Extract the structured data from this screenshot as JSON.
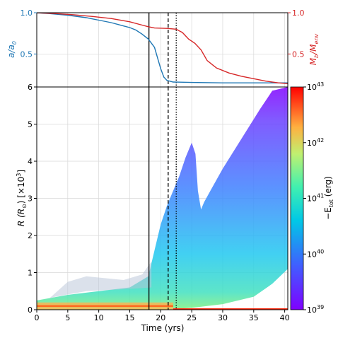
{
  "chart_data": [
    {
      "type": "line",
      "panel": "top",
      "x": [
        0,
        2,
        5,
        8,
        10,
        12,
        14,
        15,
        16,
        17,
        18,
        19,
        20,
        20.5,
        21,
        22,
        25,
        30,
        35,
        40.5
      ],
      "series": [
        {
          "name": "a/a0",
          "color": "#1f77b4",
          "axis": "left",
          "values": [
            1.0,
            0.99,
            0.97,
            0.94,
            0.91,
            0.88,
            0.84,
            0.82,
            0.79,
            0.74,
            0.68,
            0.58,
            0.32,
            0.22,
            0.18,
            0.16,
            0.155,
            0.15,
            0.15,
            0.15
          ]
        },
        {
          "name": "Mb/Menv",
          "color": "#d62728",
          "axis": "right",
          "points": [
            [
              0,
              1.0
            ],
            [
              3,
              0.99
            ],
            [
              6,
              0.975
            ],
            [
              9,
              0.955
            ],
            [
              12,
              0.93
            ],
            [
              15,
              0.89
            ],
            [
              17,
              0.85
            ],
            [
              18,
              0.83
            ],
            [
              19,
              0.815
            ],
            [
              21,
              0.81
            ],
            [
              22.5,
              0.8
            ],
            [
              23.5,
              0.76
            ],
            [
              24.5,
              0.68
            ],
            [
              25.5,
              0.63
            ],
            [
              26.5,
              0.55
            ],
            [
              27.5,
              0.42
            ],
            [
              29,
              0.33
            ],
            [
              31,
              0.27
            ],
            [
              33,
              0.23
            ],
            [
              35,
              0.2
            ],
            [
              37,
              0.17
            ],
            [
              39,
              0.15
            ],
            [
              40.5,
              0.14
            ]
          ]
        }
      ],
      "ylabel_left": "a/a",
      "ylabel_left_sub": "0",
      "ylabel_right": "M",
      "ylabel_right_sub1": "b",
      "ylabel_right_mid": "/M",
      "ylabel_right_sub2": "env",
      "ylim": [
        0.1,
        1.0
      ],
      "yticks_left": [
        "1.0",
        "0.5"
      ],
      "yticks_right": [
        "1.0",
        "0.5"
      ],
      "xlim": [
        0,
        40.5
      ],
      "grid": true
    },
    {
      "type": "scatter-density",
      "panel": "bottom",
      "xlabel": "Time (yrs)",
      "ylabel": "R (R",
      "ylabel_tail": ") [×10",
      "ylabel_sup": "3",
      "ylabel_end": "]",
      "xlim": [
        0,
        40.5
      ],
      "ylim": [
        0,
        6
      ],
      "xticks": [
        "0",
        "5",
        "10",
        "15",
        "20",
        "25",
        "30",
        "35",
        "40"
      ],
      "yticks": [
        "0",
        "1",
        "2",
        "3",
        "4",
        "5",
        "6"
      ],
      "grid": true,
      "vertical_lines": [
        {
          "x": 18.1,
          "style": "solid"
        },
        {
          "x": 21.2,
          "style": "dashed"
        },
        {
          "x": 22.5,
          "style": "dotted"
        }
      ],
      "colorbar": {
        "label_prefix": "−E",
        "label_sub": "tot",
        "label_suffix": " (erg)",
        "scale": "log",
        "range": [
          1e+39,
          1e+43
        ],
        "ticks": [
          {
            "base": "10",
            "exp": "39"
          },
          {
            "base": "10",
            "exp": "40"
          },
          {
            "base": "10",
            "exp": "41"
          },
          {
            "base": "10",
            "exp": "42"
          },
          {
            "base": "10",
            "exp": "43"
          }
        ]
      },
      "bands": [
        {
          "label": "upper-envelope",
          "points": [
            [
              0,
              0.25
            ],
            [
              5,
              0.4
            ],
            [
              10,
              0.5
            ],
            [
              15,
              0.6
            ],
            [
              18,
              0.9
            ],
            [
              19,
              1.6
            ],
            [
              20,
              2.3
            ],
            [
              21,
              2.8
            ],
            [
              22,
              3.2
            ],
            [
              23,
              3.6
            ],
            [
              24,
              4.1
            ],
            [
              25,
              4.5
            ],
            [
              25.6,
              4.2
            ],
            [
              26,
              3.2
            ],
            [
              26.5,
              2.7
            ],
            [
              27,
              2.9
            ],
            [
              28,
              3.2
            ],
            [
              30,
              3.8
            ],
            [
              33,
              4.6
            ],
            [
              36,
              5.4
            ],
            [
              38,
              5.9
            ],
            [
              40.5,
              6.0
            ]
          ]
        },
        {
          "label": "lower-envelope",
          "points": [
            [
              0,
              0.0
            ],
            [
              10,
              0.0
            ],
            [
              15,
              0.0
            ],
            [
              20,
              0.0
            ],
            [
              22,
              0.02
            ],
            [
              25,
              0.05
            ],
            [
              30,
              0.15
            ],
            [
              35,
              0.35
            ],
            [
              38,
              0.7
            ],
            [
              40.5,
              1.1
            ]
          ]
        }
      ],
      "orange_core_level": 0.1
    }
  ]
}
